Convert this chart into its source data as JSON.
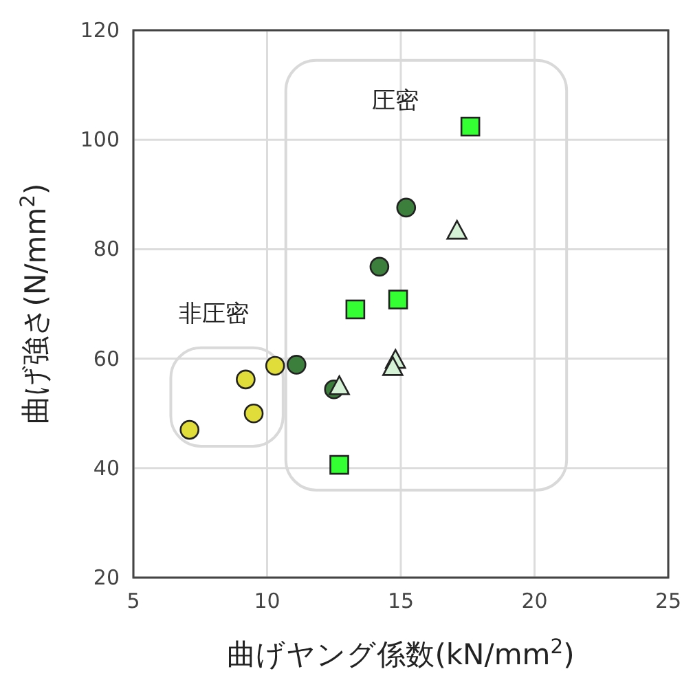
{
  "chart_data": {
    "type": "scatter",
    "xlabel": "曲げヤング係数(kN/mm$^{2}$)",
    "ylabel": "曲げ強さ(N/mm$^{2}$)",
    "xlim": [
      5,
      25
    ],
    "xticks": [
      5,
      10,
      15,
      20,
      25
    ],
    "ylim": [
      20,
      120
    ],
    "yticks": [
      20,
      40,
      60,
      80,
      100,
      120
    ],
    "grid": true,
    "annotations": [
      "圧密",
      "非圧密"
    ],
    "series": [
      {
        "color": "#e0dc3a",
        "marker": "circle",
        "x": [
          7.1,
          9.2,
          9.5,
          10.3
        ],
        "values": [
          47,
          56.2,
          50,
          58.7
        ]
      },
      {
        "color": "#3c7f3c",
        "marker": "circle",
        "x": [
          11.1,
          12.5,
          14.2,
          15.2
        ],
        "values": [
          58.9,
          54.4,
          76.8,
          87.6
        ]
      },
      {
        "color": "#33ff33",
        "marker": "square",
        "x": [
          13.3,
          14.9,
          12.7,
          17.6
        ],
        "values": [
          69,
          70.8,
          40.6,
          102.4
        ]
      },
      {
        "color": "#d6f2d6",
        "marker": "triangle",
        "x": [
          12.7,
          14.8,
          14.7,
          17.1
        ],
        "values": [
          54.9,
          59.7,
          58.4,
          83.3
        ]
      }
    ]
  }
}
